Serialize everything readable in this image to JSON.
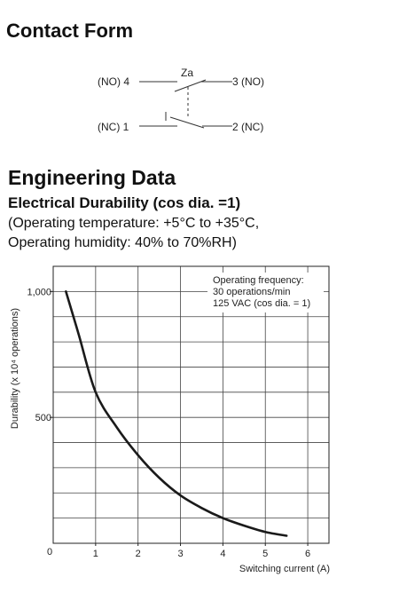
{
  "contact_form": {
    "title": "Contact Form",
    "armature_label": "Za",
    "terminals": {
      "no_left": "(NO) 4",
      "no_right": "3 (NO)",
      "nc_left": "(NC) 1",
      "nc_right": "2 (NC)"
    }
  },
  "engineering": {
    "title": "Engineering Data",
    "subtitle": "Electrical Durability (cos dia. =1)",
    "conditions_line1": "(Operating temperature: +5°C to +35°C,",
    "conditions_line2": "Operating humidity: 40% to 70%RH)"
  },
  "chart_data": {
    "type": "line",
    "title": "",
    "xlabel": "Switching current (A)",
    "ylabel": "Durability (x 10⁴ operations)",
    "xlim": [
      0,
      6.5
    ],
    "ylim": [
      0,
      1100
    ],
    "origin_label": "0",
    "x_ticks": [
      1,
      2,
      3,
      4,
      5,
      6
    ],
    "x_tick_labels": [
      "1",
      "2",
      "3",
      "4",
      "5",
      "6"
    ],
    "y_ticks": [
      500,
      1000
    ],
    "y_tick_labels": [
      "500",
      "1,000"
    ],
    "grid": true,
    "annotation": [
      "Operating frequency:",
      "30 operations/min",
      "125 VAC (cos dia. = 1)"
    ],
    "series": [
      {
        "x": [
          0.3,
          0.6,
          1.0,
          1.5,
          2.0,
          2.5,
          3.0,
          3.5,
          4.0,
          4.5,
          5.0,
          5.5
        ],
        "y": [
          1000,
          830,
          600,
          460,
          350,
          260,
          190,
          140,
          100,
          70,
          45,
          30
        ]
      }
    ]
  }
}
